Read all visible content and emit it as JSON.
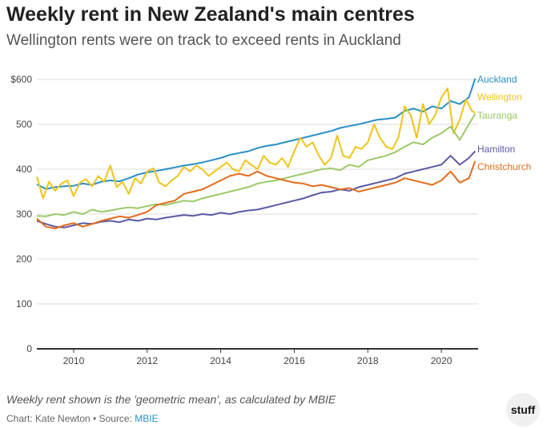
{
  "header": {
    "title": "Weekly rent in New Zealand's main centres",
    "subtitle": "Wellington rents were on track to exceed rents in Auckland"
  },
  "footer": {
    "note": "Weekly rent shown is the 'geometric mean', as calculated by MBIE",
    "credit_prefix": "Chart: Kate Newton • Source: ",
    "source_link": "MBIE",
    "logo": "stuff"
  },
  "chart_data": {
    "type": "line",
    "title": "Weekly rent in New Zealand's main centres",
    "xlabel": "",
    "ylabel": "",
    "xlim": [
      2009,
      2021
    ],
    "ylim": [
      0,
      600
    ],
    "x_ticks": [
      2010,
      2012,
      2014,
      2016,
      2018,
      2020
    ],
    "x_tick_labels": [
      "2010",
      "2012",
      "2014",
      "2016",
      "2018",
      "2020"
    ],
    "y_ticks": [
      0,
      100,
      200,
      300,
      400,
      500,
      600
    ],
    "y_tick_labels": [
      "0",
      "100",
      "200",
      "300",
      "400",
      "500",
      "$600"
    ],
    "grid": true,
    "legend": "labels at line ends (right)",
    "series": [
      {
        "name": "Auckland",
        "color": "#2a8fc7",
        "x": [
          2009.0,
          2009.25,
          2009.5,
          2009.75,
          2010.0,
          2010.25,
          2010.5,
          2010.75,
          2011.0,
          2011.25,
          2011.5,
          2011.75,
          2012.0,
          2012.25,
          2012.5,
          2012.75,
          2013.0,
          2013.25,
          2013.5,
          2013.75,
          2014.0,
          2014.25,
          2014.5,
          2014.75,
          2015.0,
          2015.25,
          2015.5,
          2015.75,
          2016.0,
          2016.25,
          2016.5,
          2016.75,
          2017.0,
          2017.25,
          2017.5,
          2017.75,
          2018.0,
          2018.25,
          2018.5,
          2018.75,
          2019.0,
          2019.25,
          2019.5,
          2019.75,
          2020.0,
          2020.25,
          2020.5,
          2020.75,
          2020.92
        ],
        "y": [
          366,
          356,
          360,
          362,
          363,
          368,
          365,
          372,
          375,
          373,
          380,
          388,
          393,
          396,
          400,
          404,
          408,
          411,
          415,
          420,
          425,
          432,
          436,
          440,
          447,
          452,
          455,
          460,
          465,
          470,
          475,
          480,
          485,
          492,
          496,
          500,
          505,
          510,
          512,
          515,
          530,
          535,
          528,
          540,
          535,
          552,
          545,
          560,
          602
        ]
      },
      {
        "name": "Wellington",
        "color": "#f0c419",
        "x": [
          2009.0,
          2009.17,
          2009.33,
          2009.5,
          2009.67,
          2009.83,
          2010.0,
          2010.17,
          2010.33,
          2010.5,
          2010.67,
          2010.83,
          2011.0,
          2011.17,
          2011.33,
          2011.5,
          2011.67,
          2011.83,
          2012.0,
          2012.17,
          2012.33,
          2012.5,
          2012.67,
          2012.83,
          2013.0,
          2013.17,
          2013.33,
          2013.5,
          2013.67,
          2013.83,
          2014.0,
          2014.17,
          2014.33,
          2014.5,
          2014.67,
          2014.83,
          2015.0,
          2015.17,
          2015.33,
          2015.5,
          2015.67,
          2015.83,
          2016.0,
          2016.17,
          2016.33,
          2016.5,
          2016.67,
          2016.83,
          2017.0,
          2017.17,
          2017.33,
          2017.5,
          2017.67,
          2017.83,
          2018.0,
          2018.17,
          2018.33,
          2018.5,
          2018.67,
          2018.83,
          2019.0,
          2019.17,
          2019.33,
          2019.5,
          2019.67,
          2019.83,
          2020.0,
          2020.17,
          2020.33,
          2020.5,
          2020.67,
          2020.83,
          2020.92
        ],
        "y": [
          383,
          335,
          372,
          352,
          368,
          375,
          340,
          370,
          378,
          362,
          385,
          372,
          408,
          360,
          372,
          345,
          380,
          368,
          395,
          402,
          370,
          362,
          375,
          385,
          405,
          395,
          408,
          400,
          385,
          395,
          405,
          415,
          400,
          395,
          420,
          410,
          400,
          430,
          415,
          410,
          425,
          405,
          440,
          470,
          450,
          460,
          430,
          410,
          425,
          475,
          430,
          425,
          450,
          445,
          460,
          500,
          470,
          450,
          445,
          470,
          540,
          520,
          470,
          545,
          500,
          520,
          560,
          580,
          480,
          510,
          555,
          530,
          525
        ]
      },
      {
        "name": "Tauranga",
        "color": "#9bc96a",
        "x": [
          2009.0,
          2009.25,
          2009.5,
          2009.75,
          2010.0,
          2010.25,
          2010.5,
          2010.75,
          2011.0,
          2011.25,
          2011.5,
          2011.75,
          2012.0,
          2012.25,
          2012.5,
          2012.75,
          2013.0,
          2013.25,
          2013.5,
          2013.75,
          2014.0,
          2014.25,
          2014.5,
          2014.75,
          2015.0,
          2015.25,
          2015.5,
          2015.75,
          2016.0,
          2016.25,
          2016.5,
          2016.75,
          2017.0,
          2017.25,
          2017.5,
          2017.75,
          2018.0,
          2018.25,
          2018.5,
          2018.75,
          2019.0,
          2019.25,
          2019.5,
          2019.75,
          2020.0,
          2020.25,
          2020.5,
          2020.75,
          2020.92
        ],
        "y": [
          296,
          295,
          300,
          298,
          305,
          300,
          310,
          305,
          308,
          312,
          315,
          313,
          318,
          322,
          320,
          325,
          330,
          328,
          335,
          340,
          345,
          350,
          355,
          360,
          368,
          372,
          375,
          380,
          385,
          390,
          395,
          400,
          402,
          398,
          410,
          405,
          420,
          425,
          430,
          438,
          450,
          460,
          455,
          470,
          480,
          495,
          465,
          500,
          523
        ]
      },
      {
        "name": "Hamilton",
        "color": "#5b5aa5",
        "x": [
          2009.0,
          2009.25,
          2009.5,
          2009.75,
          2010.0,
          2010.25,
          2010.5,
          2010.75,
          2011.0,
          2011.25,
          2011.5,
          2011.75,
          2012.0,
          2012.25,
          2012.5,
          2012.75,
          2013.0,
          2013.25,
          2013.5,
          2013.75,
          2014.0,
          2014.25,
          2014.5,
          2014.75,
          2015.0,
          2015.25,
          2015.5,
          2015.75,
          2016.0,
          2016.25,
          2016.5,
          2016.75,
          2017.0,
          2017.25,
          2017.5,
          2017.75,
          2018.0,
          2018.25,
          2018.5,
          2018.75,
          2019.0,
          2019.25,
          2019.5,
          2019.75,
          2020.0,
          2020.25,
          2020.5,
          2020.75,
          2020.92
        ],
        "y": [
          285,
          278,
          272,
          270,
          275,
          280,
          278,
          283,
          285,
          282,
          288,
          285,
          290,
          288,
          292,
          295,
          298,
          296,
          300,
          298,
          303,
          300,
          305,
          308,
          310,
          315,
          320,
          325,
          330,
          335,
          342,
          348,
          350,
          355,
          352,
          360,
          365,
          370,
          375,
          380,
          390,
          395,
          400,
          405,
          410,
          430,
          410,
          425,
          440
        ]
      },
      {
        "name": "Christchurch",
        "color": "#e36c1d",
        "x": [
          2009.0,
          2009.25,
          2009.5,
          2009.75,
          2010.0,
          2010.25,
          2010.5,
          2010.75,
          2011.0,
          2011.25,
          2011.5,
          2011.75,
          2012.0,
          2012.25,
          2012.5,
          2012.75,
          2013.0,
          2013.25,
          2013.5,
          2013.75,
          2014.0,
          2014.25,
          2014.5,
          2014.75,
          2015.0,
          2015.25,
          2015.5,
          2015.75,
          2016.0,
          2016.25,
          2016.5,
          2016.75,
          2017.0,
          2017.25,
          2017.5,
          2017.75,
          2018.0,
          2018.25,
          2018.5,
          2018.75,
          2019.0,
          2019.25,
          2019.5,
          2019.75,
          2020.0,
          2020.25,
          2020.5,
          2020.75,
          2020.92
        ],
        "y": [
          290,
          272,
          268,
          275,
          280,
          272,
          278,
          285,
          290,
          295,
          292,
          298,
          305,
          320,
          325,
          330,
          345,
          350,
          355,
          365,
          375,
          385,
          390,
          385,
          395,
          385,
          380,
          375,
          370,
          368,
          362,
          365,
          360,
          355,
          358,
          350,
          355,
          360,
          365,
          370,
          380,
          375,
          370,
          365,
          375,
          395,
          370,
          380,
          418
        ]
      }
    ]
  }
}
